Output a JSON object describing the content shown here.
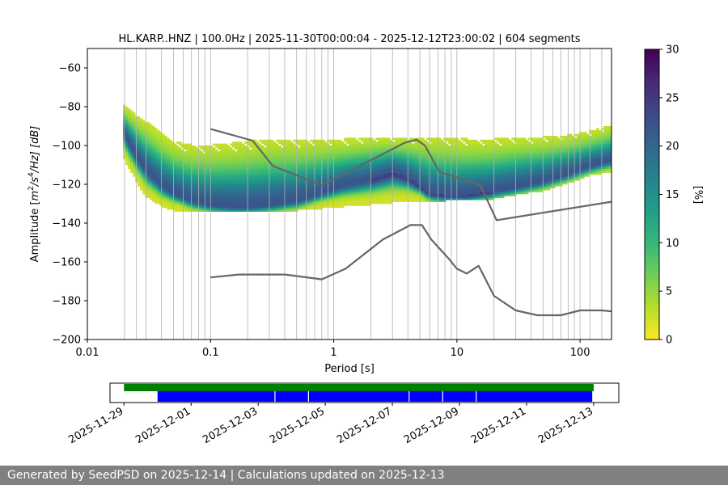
{
  "chart_data": [
    {
      "type": "heatmap",
      "title": "HL.KARP..HNZ | 100.0Hz | 2025-11-30T00:00:04 - 2025-12-12T23:00:02 | 604 segments",
      "xlabel": "Period [s]",
      "ylabel_parts": {
        "pre": "Amplitude [",
        "m": "m",
        "sup1": "2",
        "mid": "/s",
        "sup2": "4",
        "post": "/Hz] [dB]"
      },
      "xscale": "log",
      "xlim": [
        0.01,
        180
      ],
      "ylim": [
        -200,
        -50
      ],
      "x_ticks": [
        {
          "v": 0.01,
          "label": "0.01"
        },
        {
          "v": 0.1,
          "label": "0.1"
        },
        {
          "v": 1,
          "label": "1"
        },
        {
          "v": 10,
          "label": "10"
        },
        {
          "v": 100,
          "label": "100"
        }
      ],
      "y_ticks": [
        {
          "v": -60,
          "label": "−60"
        },
        {
          "v": -80,
          "label": "−80"
        },
        {
          "v": -100,
          "label": "−100"
        },
        {
          "v": -120,
          "label": "−120"
        },
        {
          "v": -140,
          "label": "−140"
        },
        {
          "v": -160,
          "label": "−160"
        },
        {
          "v": -180,
          "label": "−180"
        },
        {
          "v": -200,
          "label": "−200"
        }
      ],
      "vertical_gridlines_period": [
        0.02,
        0.025,
        0.03,
        0.04,
        0.05,
        0.06,
        0.07,
        0.08,
        0.09,
        0.1,
        0.2,
        0.3,
        0.4,
        0.5,
        0.6,
        0.7,
        0.8,
        0.9,
        1,
        2,
        3,
        4,
        5,
        6,
        7,
        8,
        9,
        10,
        20,
        30,
        40,
        50,
        60,
        70,
        80,
        90,
        100,
        120,
        150
      ],
      "grid": "vertical",
      "colorbar": {
        "label": "[%]",
        "range": [
          0,
          30
        ],
        "ticks": [
          {
            "v": 0,
            "label": "0"
          },
          {
            "v": 5,
            "label": "5"
          },
          {
            "v": 10,
            "label": "10"
          },
          {
            "v": 15,
            "label": "15"
          },
          {
            "v": 20,
            "label": "20"
          },
          {
            "v": 25,
            "label": "25"
          },
          {
            "v": 30,
            "label": "30"
          }
        ]
      },
      "colors": {
        "viridis": [
          "#fde725",
          "#b5de2b",
          "#6ece58",
          "#35b779",
          "#1f9e89",
          "#26828e",
          "#31688e",
          "#3e4989",
          "#482878",
          "#440154"
        ],
        "noise_model": "#666666"
      },
      "psd_distribution": [
        {
          "period": 0.0195,
          "lo": -105,
          "hi": -79,
          "mode": -92
        },
        {
          "period": 0.021,
          "lo": -110,
          "hi": -81,
          "mode": -97
        },
        {
          "period": 0.025,
          "lo": -118,
          "hi": -85,
          "mode": -106
        },
        {
          "period": 0.03,
          "lo": -126,
          "hi": -88,
          "mode": -113
        },
        {
          "period": 0.04,
          "lo": -131,
          "hi": -94,
          "mode": -121
        },
        {
          "period": 0.05,
          "lo": -133,
          "hi": -98,
          "mode": -125
        },
        {
          "period": 0.07,
          "lo": -134,
          "hi": -100,
          "mode": -129
        },
        {
          "period": 0.1,
          "lo": -134,
          "hi": -100,
          "mode": -131
        },
        {
          "period": 0.15,
          "lo": -134,
          "hi": -99,
          "mode": -132
        },
        {
          "period": 0.2,
          "lo": -134,
          "hi": -98,
          "mode": -132
        },
        {
          "period": 0.3,
          "lo": -134,
          "hi": -97,
          "mode": -131
        },
        {
          "period": 0.5,
          "lo": -133,
          "hi": -97,
          "mode": -129
        },
        {
          "period": 0.8,
          "lo": -132,
          "hi": -97,
          "mode": -125
        },
        {
          "period": 1.2,
          "lo": -131,
          "hi": -97,
          "mode": -121
        },
        {
          "period": 2,
          "lo": -130,
          "hi": -96,
          "mode": -118
        },
        {
          "period": 3,
          "lo": -129,
          "hi": -96,
          "mode": -114
        },
        {
          "period": 4,
          "lo": -128,
          "hi": -96,
          "mode": -117
        },
        {
          "period": 6,
          "lo": -129,
          "hi": -96,
          "mode": -125
        },
        {
          "period": 8,
          "lo": -128,
          "hi": -96,
          "mode": -126
        },
        {
          "period": 12,
          "lo": -128,
          "hi": -97,
          "mode": -126
        },
        {
          "period": 20,
          "lo": -127,
          "hi": -97,
          "mode": -124
        },
        {
          "period": 30,
          "lo": -125,
          "hi": -96,
          "mode": -122
        },
        {
          "period": 50,
          "lo": -123,
          "hi": -96,
          "mode": -119
        },
        {
          "period": 80,
          "lo": -119,
          "hi": -95,
          "mode": -115
        },
        {
          "period": 120,
          "lo": -115,
          "hi": -93,
          "mode": -111
        },
        {
          "period": 180,
          "lo": -113,
          "hi": -90,
          "mode": -108
        }
      ],
      "series": [
        {
          "x": [
            0.1,
            0.22,
            0.32,
            0.8,
            3.8,
            4.7,
            5.5,
            7.2,
            15.5,
            21,
            180
          ],
          "y": [
            -91.5,
            -97.5,
            -110.5,
            -120.5,
            -98.5,
            -97,
            -100,
            -113.5,
            -120.5,
            -138.5,
            -129
          ]
        },
        {
          "x": [
            0.1,
            0.17,
            0.4,
            0.8,
            1.25,
            2.5,
            4.2,
            5.2,
            6.2,
            8.5,
            10,
            12,
            15,
            20,
            30,
            45,
            70,
            100,
            150,
            180
          ],
          "y": [
            -168,
            -166.5,
            -166.5,
            -169,
            -163.5,
            -148.5,
            -141,
            -141,
            -148.5,
            -158,
            -163.5,
            -166,
            -162,
            -177.5,
            -185,
            -187.5,
            -187.5,
            -185,
            -185,
            -185.5
          ]
        }
      ]
    },
    {
      "type": "timeline",
      "x_ticks": [
        "2025-11-29",
        "2025-12-01",
        "2025-12-03",
        "2025-12-05",
        "2025-12-07",
        "2025-12-09",
        "2025-12-11",
        "2025-12-13"
      ],
      "xlim": [
        "2025-11-28T14:00",
        "2025-12-13T18:00"
      ],
      "available_data": {
        "color": "#008000",
        "start": "2025-11-29",
        "end": "2025-12-13"
      },
      "psd_segments": {
        "color": "#0000ff",
        "start": "2025-11-30T00:00:04",
        "end": "2025-12-12T23:00:02",
        "gaps": [
          "2025-12-03T12:00",
          "2025-12-04T12:00",
          "2025-12-07T12:00",
          "2025-12-08T12:00",
          "2025-12-09T12:00"
        ]
      }
    }
  ],
  "footer": "Generated by SeedPSD on 2025-12-14 | Calculations updated on 2025-12-13"
}
